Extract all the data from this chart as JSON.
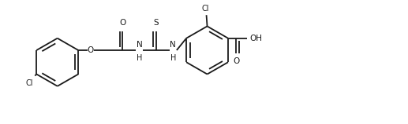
{
  "bg_color": "#ffffff",
  "line_color": "#1a1a1a",
  "line_width": 1.3,
  "figsize": [
    5.17,
    1.58
  ],
  "dpi": 100,
  "xlim": [
    0,
    10.0
  ],
  "ylim": [
    0,
    3.05
  ]
}
